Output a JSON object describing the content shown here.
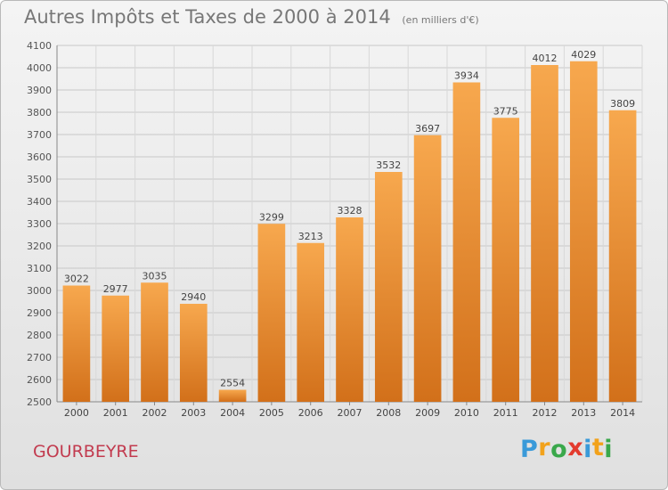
{
  "title": "Autres Impôts et Taxes de 2000 à 2014",
  "unit": "(en milliers d'€)",
  "commune": "GOURBEYRE",
  "logo": {
    "letters": [
      {
        "ch": "P",
        "color": "#3a9ad9"
      },
      {
        "ch": "r",
        "color": "#f2a21b"
      },
      {
        "ch": "o",
        "color": "#3aa84b"
      },
      {
        "ch": "x",
        "color": "#e33b2e"
      },
      {
        "ch": "i",
        "color": "#3a9ad9"
      },
      {
        "ch": "t",
        "color": "#f2a21b"
      },
      {
        "ch": "i",
        "color": "#3aa84b"
      }
    ]
  },
  "chart_data": {
    "type": "bar",
    "categories": [
      "2000",
      "2001",
      "2002",
      "2003",
      "2004",
      "2005",
      "2006",
      "2007",
      "2008",
      "2009",
      "2010",
      "2011",
      "2012",
      "2013",
      "2014"
    ],
    "values": [
      3022,
      2977,
      3035,
      2940,
      2554,
      3299,
      3213,
      3328,
      3532,
      3697,
      3934,
      3775,
      4012,
      4029,
      3809
    ],
    "ylim": [
      2500,
      4100
    ],
    "yticks": [
      2500,
      2600,
      2700,
      2800,
      2900,
      3000,
      3100,
      3200,
      3300,
      3400,
      3500,
      3600,
      3700,
      3800,
      3900,
      4000,
      4100
    ],
    "grid": true,
    "bar_color_light": "#f7a84e",
    "bar_color_dark": "#d2701a",
    "xlabel": "",
    "ylabel": ""
  }
}
